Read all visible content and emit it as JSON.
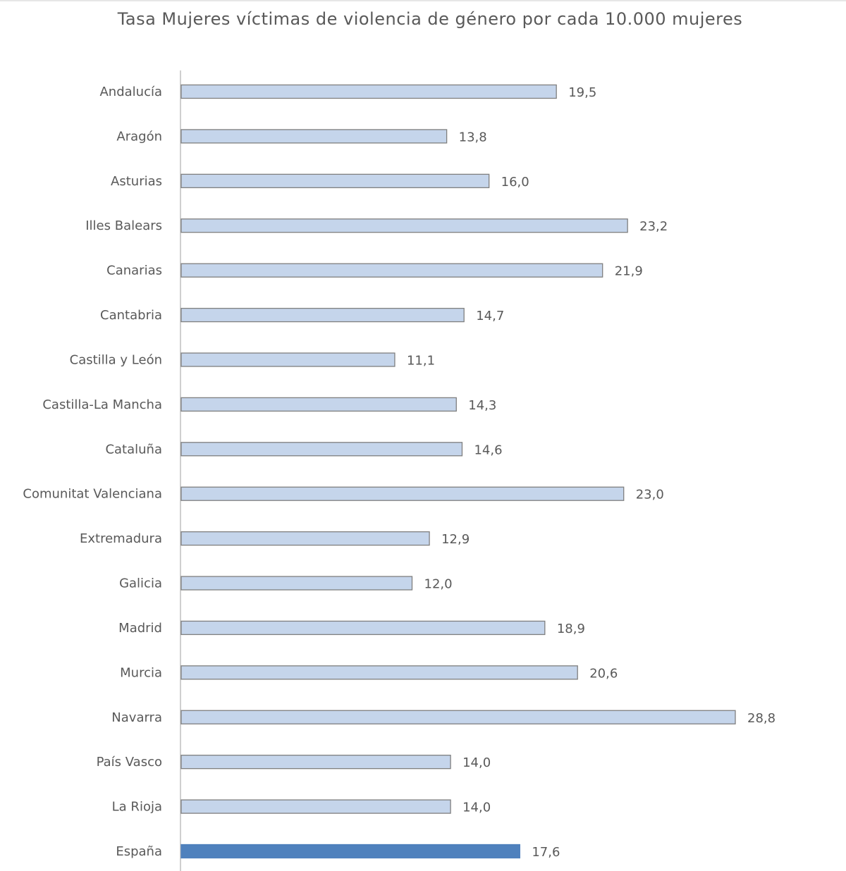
{
  "chart_data": {
    "type": "bar",
    "orientation": "horizontal",
    "title": "Tasa Mujeres víctimas de violencia de género por cada 10.000 mujeres",
    "categories": [
      "Andalucía",
      "Aragón",
      "Asturias",
      "Illes Balears",
      "Canarias",
      "Cantabria",
      "Castilla y León",
      "Castilla-La Mancha",
      "Cataluña",
      "Comunitat Valenciana",
      "Extremadura",
      "Galicia",
      "Madrid",
      "Murcia",
      "Navarra",
      "País Vasco",
      "La Rioja",
      "España"
    ],
    "values": [
      19.5,
      13.8,
      16.0,
      23.2,
      21.9,
      14.7,
      11.1,
      14.3,
      14.6,
      23.0,
      12.9,
      12.0,
      18.9,
      20.6,
      28.8,
      14.0,
      14.0,
      17.6
    ],
    "value_labels": [
      "19,5",
      "13,8",
      "16,0",
      "23,2",
      "21,9",
      "14,7",
      "11,1",
      "14,3",
      "14,6",
      "23,0",
      "12,9",
      "12,0",
      "18,9",
      "20,6",
      "28,8",
      "14,0",
      "14,0",
      "17,6"
    ],
    "highlight_category": "España",
    "xlim": [
      0,
      28.8
    ],
    "grid": false,
    "colors": {
      "bar": "#c5d5eb",
      "bar_border": "#7f7f7f",
      "highlight": "#4f81bd",
      "text": "#595959",
      "axis": "#bfbfbf"
    }
  }
}
